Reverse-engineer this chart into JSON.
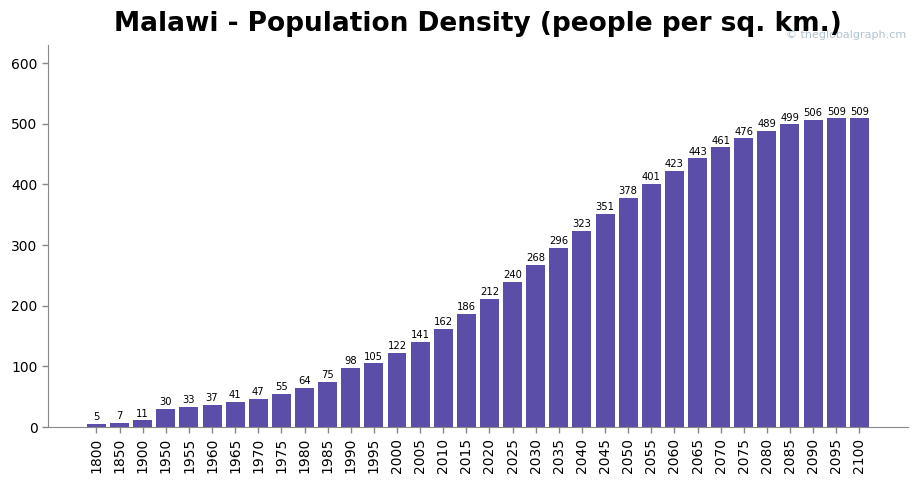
{
  "title": "Malawi - Population Density (people per sq. km.)",
  "watermark": "© theglobalgraph.cm",
  "categories": [
    1800,
    1850,
    1900,
    1950,
    1955,
    1960,
    1965,
    1970,
    1975,
    1980,
    1985,
    1990,
    1995,
    2000,
    2005,
    2010,
    2015,
    2020,
    2025,
    2030,
    2035,
    2040,
    2045,
    2050,
    2055,
    2060,
    2065,
    2070,
    2075,
    2080,
    2085,
    2090,
    2095,
    2100
  ],
  "values": [
    5,
    7,
    11,
    30,
    33,
    37,
    41,
    47,
    55,
    64,
    75,
    98,
    105,
    122,
    141,
    162,
    186,
    212,
    240,
    268,
    296,
    323,
    351,
    378,
    401,
    423,
    443,
    461,
    476,
    489,
    499,
    506,
    509,
    509
  ],
  "bar_color": "#5b4ea8",
  "background_color": "#ffffff",
  "ylim": [
    0,
    630
  ],
  "yticks": [
    0,
    100,
    200,
    300,
    400,
    500,
    600
  ],
  "title_fontsize": 19,
  "label_fontsize": 7.2,
  "tick_fontsize": 10,
  "watermark_color": "#b0c4d0",
  "watermark_fontsize": 8
}
